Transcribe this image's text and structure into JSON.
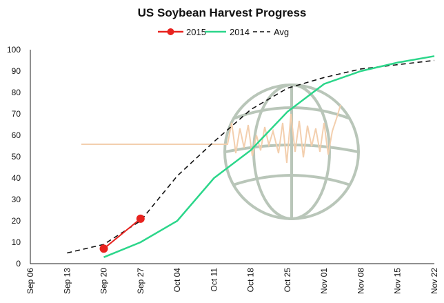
{
  "chart_data": {
    "type": "line",
    "title": "US Soybean Harvest Progress",
    "xlabel": "",
    "ylabel": "",
    "ylim": [
      0,
      100
    ],
    "yticks": [
      0,
      10,
      20,
      30,
      40,
      50,
      60,
      70,
      80,
      90,
      100
    ],
    "categories": [
      "Sep 06",
      "Sep 13",
      "Sep 20",
      "Sep 27",
      "Oct 04",
      "Oct 11",
      "Oct 18",
      "Oct 25",
      "Nov 01",
      "Nov 08",
      "Nov 15",
      "Nov 22"
    ],
    "grid": false,
    "legend_position": "top",
    "series": [
      {
        "name": "2015",
        "style": "solid-markers",
        "color": "#e8231f",
        "values": [
          null,
          null,
          7,
          21,
          null,
          null,
          null,
          null,
          null,
          null,
          null,
          null
        ]
      },
      {
        "name": "2014",
        "style": "solid",
        "color": "#2bd68a",
        "values": [
          null,
          null,
          3,
          10,
          20,
          40,
          53,
          71,
          84,
          90,
          94,
          97
        ]
      },
      {
        "name": "Avg",
        "style": "dashed",
        "color": "#111111",
        "values": [
          null,
          5,
          9,
          20,
          41,
          57,
          72,
          82,
          87,
          91,
          93,
          95
        ]
      }
    ]
  },
  "watermark": {
    "icon": "globe-with-price-line-icon",
    "globe_color": "#b9c6b9",
    "line_color": "#f3cfae"
  }
}
